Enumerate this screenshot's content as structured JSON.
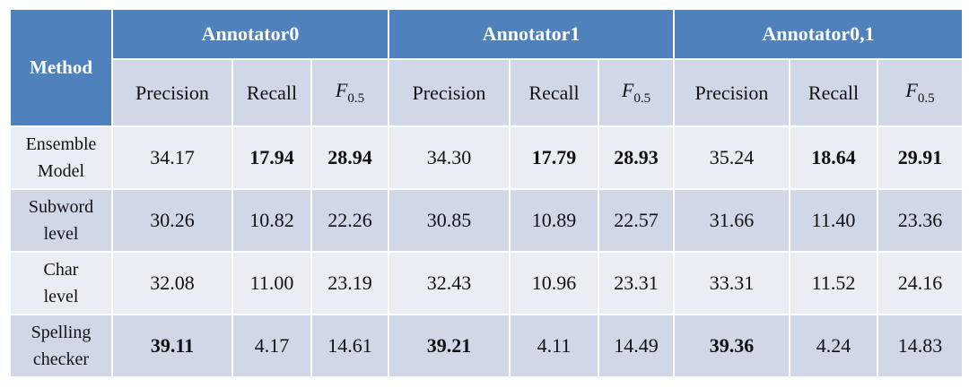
{
  "table": {
    "method_header": "Method",
    "groups": [
      {
        "title": "Annotator0"
      },
      {
        "title": "Annotator1"
      },
      {
        "title": "Annotator0,1"
      }
    ],
    "sub_headers": {
      "precision": "Precision",
      "recall": "Recall",
      "f_symbol": "F",
      "f_subscript": "0.5"
    },
    "rows": [
      {
        "method_line1": "Ensemble",
        "method_line2": "Model",
        "values": [
          "34.17",
          "17.94",
          "28.94",
          "34.30",
          "17.79",
          "28.93",
          "35.24",
          "18.64",
          "29.91"
        ],
        "bold": [
          false,
          true,
          true,
          false,
          true,
          true,
          false,
          true,
          true
        ]
      },
      {
        "method_line1": "Subword",
        "method_line2": "level",
        "values": [
          "30.26",
          "10.82",
          "22.26",
          "30.85",
          "10.89",
          "22.57",
          "31.66",
          "11.40",
          "23.36"
        ],
        "bold": [
          false,
          false,
          false,
          false,
          false,
          false,
          false,
          false,
          false
        ]
      },
      {
        "method_line1": "Char",
        "method_line2": "level",
        "values": [
          "32.08",
          "11.00",
          "23.19",
          "32.43",
          "10.96",
          "23.31",
          "33.31",
          "11.52",
          "24.16"
        ],
        "bold": [
          false,
          false,
          false,
          false,
          false,
          false,
          false,
          false,
          false
        ]
      },
      {
        "method_line1": "Spelling",
        "method_line2": "checker",
        "values": [
          "39.11",
          "4.17",
          "14.61",
          "39.21",
          "4.11",
          "14.49",
          "39.36",
          "4.24",
          "14.83"
        ],
        "bold": [
          true,
          false,
          false,
          true,
          false,
          false,
          true,
          false,
          false
        ]
      }
    ]
  },
  "colors": {
    "header_blue": "#4f81bd",
    "row_dark": "#d0d8e8",
    "row_light": "#e9edf4"
  }
}
